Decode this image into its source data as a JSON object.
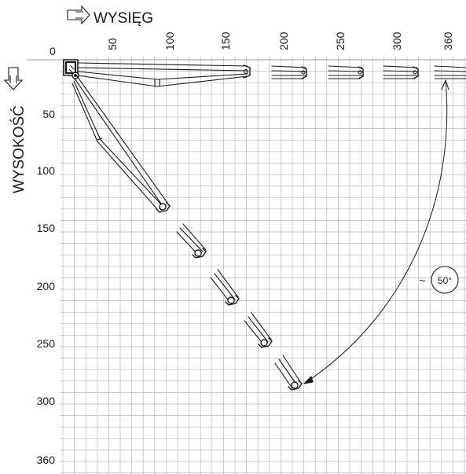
{
  "reach_label": "WYSIĘG",
  "height_label": "WYSOKOŚĆ",
  "reach_ticks": [
    "50",
    "100",
    "150",
    "200",
    "250",
    "300",
    "360"
  ],
  "height_ticks": [
    "50",
    "100",
    "150",
    "200",
    "250",
    "300",
    "360"
  ],
  "origin_label": "0",
  "angle_prefix": "~",
  "angle_label": "50°",
  "colors": {
    "grid": "#b8b8b8",
    "ink": "#1a1a1a",
    "background": "#ffffff"
  },
  "icons": [
    "reach-arrow-icon",
    "height-arrow-icon"
  ]
}
